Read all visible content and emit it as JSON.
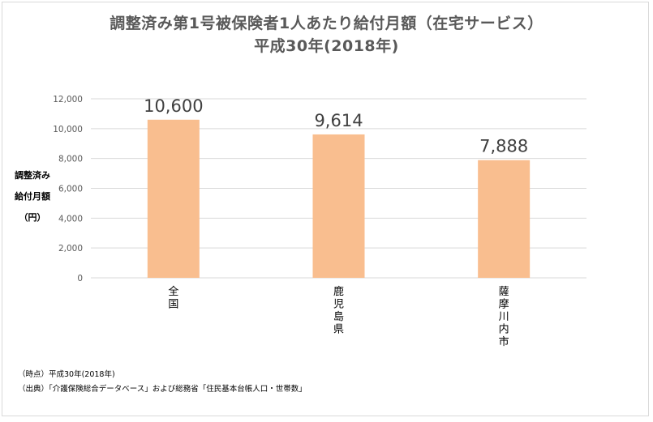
{
  "chart_data": {
    "type": "bar",
    "title_line1": "調整済み第1号被保険者1人あたり給付月額（在宅サービス）",
    "title_line2": "平成30年(2018年)",
    "ylabel_lines": [
      "調整済み",
      "給付月額",
      "（円）"
    ],
    "categories": [
      "全国",
      "鹿児島県",
      "薩摩川内市"
    ],
    "values": [
      10600,
      9614,
      7888
    ],
    "value_labels": [
      "10,600",
      "9,614",
      "7,888"
    ],
    "y_ticks": [
      0,
      2000,
      4000,
      6000,
      8000,
      10000,
      12000
    ],
    "y_tick_labels": [
      "0",
      "2,000",
      "4,000",
      "6,000",
      "8,000",
      "10,000",
      "12,000"
    ],
    "ylim": [
      0,
      12000
    ],
    "grid": true,
    "bar_color": "#f9be8f"
  },
  "notes": {
    "time": "（時点）平成30年(2018年)",
    "source": "（出典）「介護保険総合データベース」および総務省「住民基本台帳人口・世帯数」"
  },
  "colors": {
    "title": "#595959",
    "grid": "#d9d9d9",
    "tick": "#595959"
  }
}
